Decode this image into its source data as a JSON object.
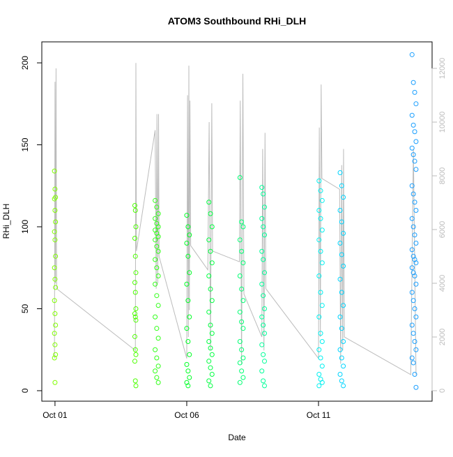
{
  "chart_data": {
    "type": "scatter",
    "title": "ATOM3 Southbound RHi_DLH",
    "xlabel": "Date",
    "ylabel": "RHi_DLH",
    "xlim": [
      0.5,
      15.31
    ],
    "ylim": [
      -6.4,
      212.8
    ],
    "y2lim": [
      -390,
      12987
    ],
    "xticks": [
      {
        "value": 1,
        "label": "Oct 01"
      },
      {
        "value": 6,
        "label": "Oct 06"
      },
      {
        "value": 11,
        "label": "Oct 11"
      }
    ],
    "yticks": [
      0,
      50,
      100,
      150,
      200
    ],
    "y2ticks": [
      0,
      2000,
      4000,
      6000,
      8000,
      10000,
      12000
    ],
    "y2color": "#bbbbbb",
    "series": [
      {
        "color": "#80ff00",
        "x": [
          0.98,
          1.0,
          1.02,
          0.98,
          1.0,
          1.02,
          0.98,
          1.0,
          1.02,
          0.98,
          1.0,
          1.02,
          0.98,
          1.0,
          1.02,
          0.98,
          1.0,
          1.02,
          0.98,
          1.0
        ],
        "values": [
          134,
          123,
          118,
          117,
          110,
          103,
          97,
          92,
          82,
          75,
          68,
          63,
          55,
          47,
          40,
          35,
          28,
          22,
          20,
          5
        ]
      },
      {
        "color": "#4cff00",
        "x": [
          4.03,
          4.05,
          4.07,
          4.03,
          4.05,
          4.07,
          4.03,
          4.05,
          4.07,
          4.03,
          4.05,
          4.07,
          4.03,
          4.05,
          4.07,
          4.03,
          4.05,
          4.07
        ],
        "values": [
          113,
          110,
          100,
          93,
          82,
          72,
          66,
          60,
          50,
          47,
          45,
          43,
          33,
          25,
          22,
          18,
          6,
          3
        ]
      },
      {
        "color": "#33ff1a",
        "x": [
          4.8,
          4.86,
          4.92,
          4.8,
          4.86,
          4.92,
          4.8,
          4.86,
          4.92,
          4.8,
          4.86,
          4.92,
          4.8,
          4.86,
          4.92,
          4.8,
          4.86,
          4.92,
          4.8,
          4.86,
          4.92,
          4.8,
          4.86,
          4.92,
          4.8,
          4.86,
          4.92
        ],
        "values": [
          116,
          112,
          108,
          105,
          102,
          100,
          98,
          96,
          94,
          92,
          88,
          85,
          80,
          75,
          70,
          65,
          58,
          52,
          45,
          38,
          32,
          25,
          20,
          15,
          12,
          8,
          5
        ]
      },
      {
        "color": "#00ff26",
        "x": [
          6.0,
          6.05,
          6.1,
          6.0,
          6.05,
          6.1,
          6.0,
          6.05,
          6.1,
          6.0,
          6.05,
          6.1,
          6.0,
          6.05,
          6.1,
          6.0,
          6.05
        ],
        "values": [
          107,
          100,
          95,
          90,
          82,
          72,
          65,
          55,
          45,
          38,
          30,
          22,
          16,
          12,
          8,
          5,
          3
        ]
      },
      {
        "color": "#00ff40",
        "x": [
          6.84,
          6.9,
          6.96,
          6.84,
          6.9,
          6.96,
          6.84,
          6.9,
          6.96,
          6.84,
          6.9,
          6.96,
          6.84,
          6.9,
          6.96,
          6.84,
          6.9,
          6.96,
          6.84,
          6.9
        ],
        "values": [
          115,
          108,
          100,
          92,
          85,
          78,
          70,
          62,
          55,
          48,
          40,
          35,
          30,
          26,
          22,
          18,
          14,
          10,
          6,
          3
        ]
      },
      {
        "color": "#00ff73",
        "x": [
          8.02,
          8.08,
          8.14,
          8.02,
          8.08,
          8.14,
          8.02,
          8.08,
          8.14,
          8.02,
          8.08,
          8.14,
          8.02,
          8.08,
          8.14,
          8.02,
          8.08,
          8.14,
          8.02
        ],
        "values": [
          130,
          103,
          100,
          92,
          85,
          78,
          70,
          62,
          55,
          48,
          42,
          38,
          30,
          25,
          20,
          17,
          12,
          8,
          5
        ]
      },
      {
        "color": "#00ff99",
        "x": [
          8.85,
          8.9,
          8.95,
          8.85,
          8.9,
          8.95,
          8.85,
          8.9,
          8.95,
          8.85,
          8.9,
          8.95,
          8.85,
          8.9,
          8.95,
          8.85,
          8.9,
          8.95,
          8.85,
          8.9,
          8.95
        ],
        "values": [
          124,
          120,
          112,
          105,
          100,
          95,
          85,
          80,
          72,
          65,
          58,
          50,
          45,
          40,
          35,
          28,
          22,
          18,
          12,
          6,
          3
        ]
      },
      {
        "color": "#00f0f0",
        "x": [
          11.02,
          11.08,
          11.14,
          11.02,
          11.08,
          11.14,
          11.02,
          11.08,
          11.14,
          11.02,
          11.08,
          11.14,
          11.02,
          11.08,
          11.14,
          11.02,
          11.08,
          11.14,
          11.02,
          11.08,
          11.14,
          11.02
        ],
        "values": [
          128,
          122,
          116,
          110,
          105,
          98,
          92,
          85,
          78,
          70,
          60,
          52,
          45,
          35,
          30,
          25,
          20,
          15,
          10,
          7,
          5,
          3
        ]
      },
      {
        "color": "#00d4ff",
        "x": [
          11.82,
          11.88,
          11.94,
          11.82,
          11.88,
          11.94,
          11.82,
          11.88,
          11.94,
          11.82,
          11.88,
          11.94,
          11.82,
          11.88,
          11.94,
          11.82,
          11.88,
          11.94,
          11.82,
          11.88,
          11.94
        ],
        "values": [
          133,
          125,
          118,
          110,
          103,
          96,
          90,
          83,
          76,
          68,
          60,
          52,
          45,
          38,
          30,
          25,
          20,
          15,
          10,
          6,
          3
        ]
      },
      {
        "color": "#1a9fff",
        "x": [
          14.55,
          14.6,
          14.65,
          14.7,
          14.55,
          14.6,
          14.65,
          14.7,
          14.55,
          14.6,
          14.65,
          14.7,
          14.55,
          14.6,
          14.65,
          14.7,
          14.55,
          14.6,
          14.65,
          14.7,
          14.55,
          14.6,
          14.65,
          14.7,
          14.55,
          14.6,
          14.65,
          14.7,
          14.55,
          14.6,
          14.65,
          14.7,
          14.55,
          14.6,
          14.65,
          14.7,
          14.55,
          14.6,
          14.65,
          14.7
        ],
        "values": [
          205,
          188,
          182,
          175,
          168,
          162,
          158,
          152,
          148,
          144,
          140,
          135,
          125,
          120,
          115,
          110,
          105,
          100,
          95,
          90,
          86,
          82,
          80,
          78,
          75,
          72,
          70,
          65,
          60,
          55,
          50,
          45,
          40,
          35,
          30,
          25,
          20,
          17,
          10,
          2
        ]
      },
      {
        "type": "line",
        "axis": "y2",
        "color": "#bbbbbb",
        "x": [
          0.98,
          1.0,
          1.02,
          1.04,
          1.06,
          4.05,
          4.07,
          4.09,
          4.8,
          4.84,
          4.87,
          4.9,
          4.93,
          4.95,
          6.0,
          6.03,
          6.06,
          6.08,
          6.1,
          6.12,
          6.15,
          6.8,
          6.85,
          6.9,
          6.95,
          6.98,
          8.0,
          8.03,
          8.08,
          8.13,
          8.17,
          8.85,
          8.88,
          8.93,
          8.97,
          9.0,
          11.0,
          11.03,
          11.07,
          11.1,
          11.13,
          11.8,
          11.84,
          11.88,
          11.92,
          11.95,
          11.98,
          14.5,
          14.6,
          14.7
        ],
        "values": [
          1200,
          11500,
          4000,
          12000,
          3800,
          1500,
          12200,
          5200,
          9700,
          3800,
          10300,
          4000,
          10300,
          5000,
          1200,
          11000,
          2000,
          12100,
          3000,
          10800,
          5400,
          4500,
          10000,
          1500,
          10700,
          5200,
          4800,
          10800,
          1000,
          11800,
          3600,
          2000,
          9000,
          1500,
          9600,
          3800,
          1200,
          9800,
          2000,
          11400,
          7900,
          7500,
          1000,
          8400,
          1500,
          9000,
          2000,
          600,
          9000,
          600
        ]
      }
    ]
  }
}
